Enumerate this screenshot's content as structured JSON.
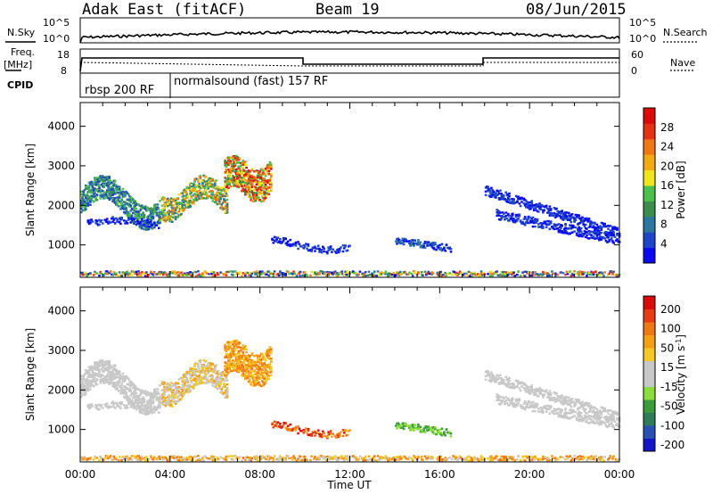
{
  "header": {
    "radar": "Adak East (fitACF)",
    "beam": "Beam 19",
    "date": "08/Jun/2015"
  },
  "param_labels": {
    "nsky": "N.Sky",
    "nsky_ticks": [
      "10^5",
      "10^0"
    ],
    "nsearch": "N.Search",
    "nsearch_ticks": [
      "10^5",
      "10^0"
    ],
    "freq": "Freq.",
    "freq_unit": "[MHz]",
    "freq_ticks": [
      "18",
      "8"
    ],
    "nave": "Nave",
    "nave_ticks": [
      "60",
      "0"
    ],
    "cpid": "CPID"
  },
  "cpid_segments": [
    {
      "label": "rbsp 200 RF",
      "start_hour": 0
    },
    {
      "label": "normalsound (fast) 157 RF",
      "start_hour": 4
    }
  ],
  "chart_data": [
    {
      "type": "heatmap",
      "name": "power",
      "ylabel": "Slant Range [km]",
      "yticks": [
        1000,
        2000,
        3000,
        4000
      ],
      "ylim": [
        180,
        4600
      ],
      "xlim_hours": [
        0,
        24
      ],
      "colorbar": {
        "label": "Power [dB]",
        "ticks": [
          "4",
          "8",
          "12",
          "16",
          "20",
          "24",
          "28"
        ],
        "colors": [
          "#0a0af0",
          "#1e46c8",
          "#2a78a0",
          "#3c8c50",
          "#4cc04c",
          "#f0e61e",
          "#f5aa14",
          "#f07814",
          "#e63214",
          "#dc0a0a"
        ]
      }
    },
    {
      "type": "heatmap",
      "name": "velocity",
      "ylabel": "Slant Range [km]",
      "yticks": [
        1000,
        2000,
        3000,
        4000
      ],
      "ylim": [
        180,
        4600
      ],
      "xlim_hours": [
        0,
        24
      ],
      "colorbar": {
        "label": "Velocity [m s^-1]",
        "ticks": [
          "200",
          "100",
          "50",
          "15",
          "-15",
          "-50",
          "-100",
          "-200"
        ],
        "colors": [
          "#1414c8",
          "#2a50b4",
          "#2f7c5a",
          "#3c9c3c",
          "#8cdc3c",
          "#c8c8c8",
          "#c8c8c8",
          "#f5c828",
          "#f5a014",
          "#f07814",
          "#e63c14",
          "#dc0a0a"
        ]
      }
    }
  ],
  "xaxis": {
    "ticks": [
      "00:00",
      "04:00",
      "08:00",
      "12:00",
      "16:00",
      "20:00",
      "00:00"
    ],
    "label": "Time UT"
  }
}
